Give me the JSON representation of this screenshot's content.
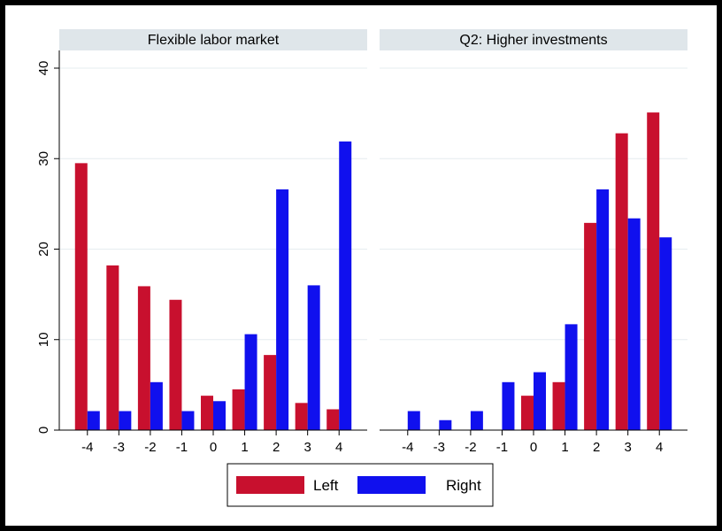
{
  "colors": {
    "left": "#c8102e",
    "right": "#1010ee",
    "strip": "#dfe6ea",
    "grid": "#e6ecef",
    "outer_bg": "#000000",
    "plot_bg": "#ffffff"
  },
  "chart_data": [
    {
      "type": "bar",
      "title": "Flexible labor market",
      "categories": [
        "-4",
        "-3",
        "-2",
        "-1",
        "0",
        "1",
        "2",
        "3",
        "4"
      ],
      "series": [
        {
          "name": "Left",
          "values": [
            29.5,
            18.2,
            15.9,
            14.4,
            3.8,
            4.5,
            8.3,
            3.0,
            2.3
          ]
        },
        {
          "name": "Right",
          "values": [
            2.1,
            2.1,
            5.3,
            2.1,
            3.2,
            10.6,
            26.6,
            16.0,
            31.9
          ]
        }
      ],
      "ylim": [
        0,
        40
      ],
      "yticks": [
        "0",
        "10",
        "20",
        "30",
        "40"
      ],
      "grid": true
    },
    {
      "type": "bar",
      "title": "Q2: Higher investments",
      "categories": [
        "-4",
        "-3",
        "-2",
        "-1",
        "0",
        "1",
        "2",
        "3",
        "4"
      ],
      "series": [
        {
          "name": "Left",
          "values": [
            0,
            0,
            0,
            0,
            3.8,
            5.3,
            22.9,
            32.8,
            35.1
          ]
        },
        {
          "name": "Right",
          "values": [
            2.1,
            1.1,
            2.1,
            5.3,
            6.4,
            11.7,
            26.6,
            23.4,
            21.3
          ]
        }
      ],
      "ylim": [
        0,
        40
      ],
      "yticks": [
        "0",
        "10",
        "20",
        "30",
        "40"
      ],
      "grid": true
    }
  ],
  "legend": {
    "position": "bottom",
    "items": [
      {
        "label": "Left",
        "color_key": "left"
      },
      {
        "label": "Right",
        "color_key": "right"
      }
    ]
  }
}
